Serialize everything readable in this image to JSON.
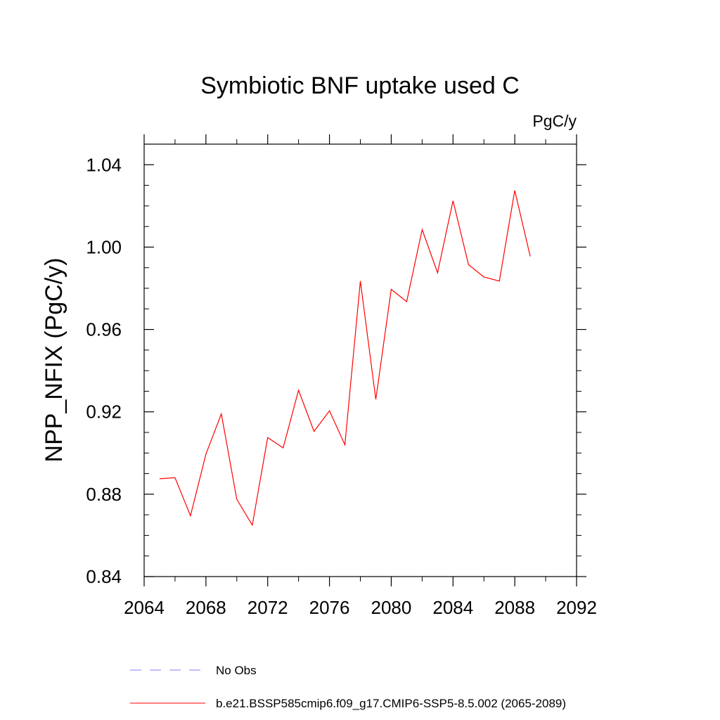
{
  "chart_data": {
    "type": "line",
    "title": "Symbiotic BNF uptake used C",
    "units": "PgC/y",
    "xlabel": "",
    "ylabel": "NPP_NFIX  (PgC/y)",
    "xlim": [
      2064,
      2092
    ],
    "ylim": [
      0.84,
      1.05
    ],
    "x_ticks": [
      2064,
      2068,
      2072,
      2076,
      2080,
      2084,
      2088,
      2092
    ],
    "y_ticks": [
      0.84,
      0.88,
      0.92,
      0.96,
      1.0,
      1.04
    ],
    "x_tick_labels": [
      "2064",
      "2068",
      "2072",
      "2076",
      "2080",
      "2084",
      "2088",
      "2092"
    ],
    "y_tick_labels": [
      "0.84",
      "0.88",
      "0.92",
      "0.96",
      "1.00",
      "1.04"
    ],
    "grid": false,
    "series": [
      {
        "name": "b.e21.BSSP585cmip6.f09_g17.CMIP6-SSP5-8.5.002 (2065-2089)",
        "color": "#ff0000",
        "style": "solid",
        "x": [
          2065,
          2066,
          2067,
          2068,
          2069,
          2070,
          2071,
          2072,
          2073,
          2074,
          2075,
          2076,
          2077,
          2078,
          2079,
          2080,
          2081,
          2082,
          2083,
          2084,
          2085,
          2086,
          2087,
          2088,
          2089
        ],
        "y": [
          0.8875,
          0.888,
          0.8695,
          0.8995,
          0.919,
          0.8775,
          0.865,
          0.9075,
          0.9025,
          0.9305,
          0.9105,
          0.9205,
          0.904,
          0.9835,
          0.926,
          0.9795,
          0.9735,
          1.0085,
          0.9875,
          1.0225,
          0.9915,
          0.9855,
          0.9835,
          1.0275,
          0.9955
        ]
      }
    ],
    "legend": [
      {
        "label": "No Obs",
        "color": "#7f7fff",
        "style": "dashed"
      },
      {
        "label": "b.e21.BSSP585cmip6.f09_g17.CMIP6-SSP5-8.5.002 (2065-2089)",
        "color": "#ff0000",
        "style": "solid"
      }
    ],
    "legend_position": "bottom"
  }
}
